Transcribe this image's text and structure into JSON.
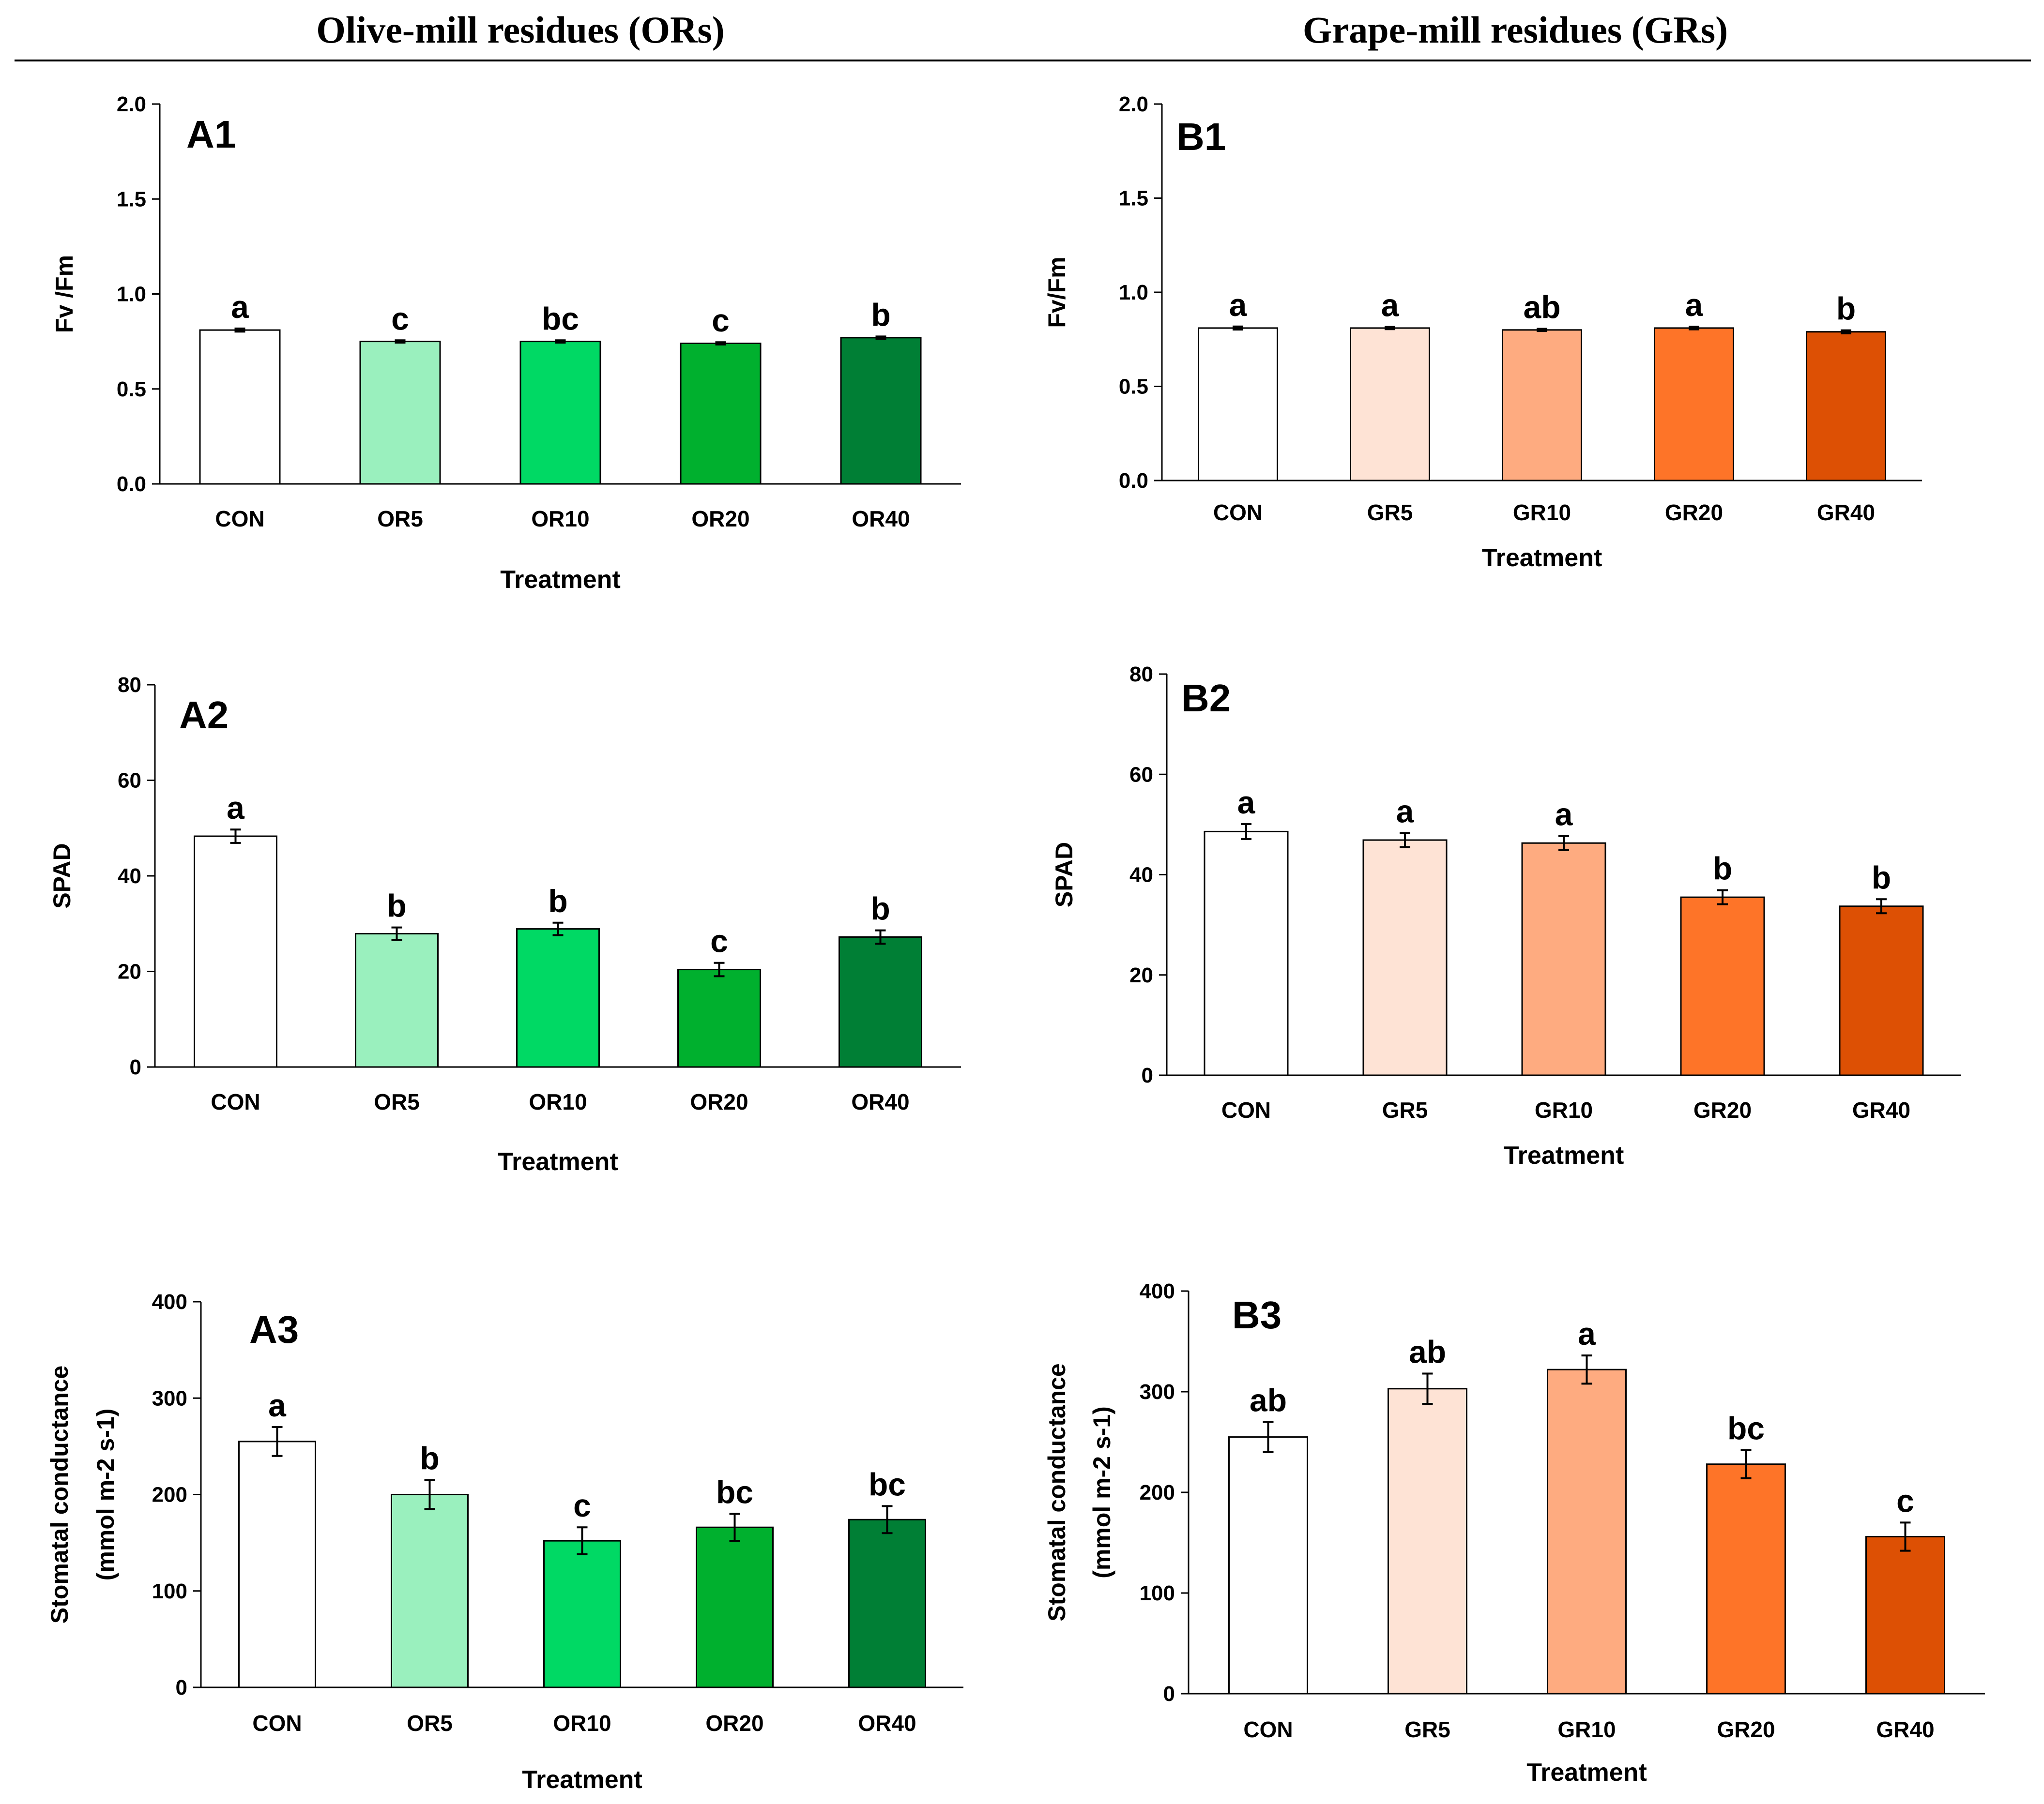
{
  "headers": {
    "left": "Olive-mill residues (ORs)",
    "right": "Grape-mill residues (GRs)"
  },
  "chart_data": [
    {
      "id": "A1",
      "type": "bar",
      "panel_label": "A1",
      "categories": [
        "CON",
        "OR5",
        "OR10",
        "OR20",
        "OR40"
      ],
      "values": [
        0.81,
        0.75,
        0.75,
        0.74,
        0.77
      ],
      "errors": [
        0.008,
        0.006,
        0.006,
        0.006,
        0.006
      ],
      "letters": [
        "a",
        "c",
        "bc",
        "c",
        "b"
      ],
      "colors": [
        "#ffffff",
        "#9af0be",
        "#00d964",
        "#00b02e",
        "#007f35"
      ],
      "ylim": [
        0,
        2.0
      ],
      "yticks": [
        0,
        0.5,
        1.0,
        1.5,
        2.0
      ],
      "yticklabels": [
        "0.0",
        "0.5",
        "1.0",
        "1.5",
        "2.0"
      ],
      "ylabel": "Fv /Fm",
      "ylabel2": "",
      "xlabel": "Treatment"
    },
    {
      "id": "B1",
      "type": "bar",
      "panel_label": "B1",
      "categories": [
        "CON",
        "GR5",
        "GR10",
        "GR20",
        "GR40"
      ],
      "values": [
        0.81,
        0.81,
        0.8,
        0.81,
        0.79
      ],
      "errors": [
        0.008,
        0.006,
        0.006,
        0.007,
        0.008
      ],
      "letters": [
        "a",
        "a",
        "ab",
        "a",
        "b"
      ],
      "colors": [
        "#ffffff",
        "#fee3d5",
        "#feab80",
        "#fe7428",
        "#dd5004"
      ],
      "ylim": [
        0,
        2.0
      ],
      "yticks": [
        0,
        0.5,
        1.0,
        1.5,
        2.0
      ],
      "yticklabels": [
        "0.0",
        "0.5",
        "1.0",
        "1.5",
        "2.0"
      ],
      "ylabel": "Fv/Fm",
      "ylabel2": "",
      "xlabel": "Treatment"
    },
    {
      "id": "A2",
      "type": "bar",
      "panel_label": "A2",
      "categories": [
        "CON",
        "OR5",
        "OR10",
        "OR20",
        "OR40"
      ],
      "values": [
        48.3,
        27.9,
        28.9,
        20.4,
        27.2
      ],
      "errors": [
        1.4,
        1.3,
        1.3,
        1.4,
        1.4
      ],
      "letters": [
        "a",
        "b",
        "b",
        "c",
        "b"
      ],
      "colors": [
        "#ffffff",
        "#9af0be",
        "#00d964",
        "#00b02e",
        "#007f35"
      ],
      "ylim": [
        0,
        80
      ],
      "yticks": [
        0,
        20,
        40,
        60,
        80
      ],
      "yticklabels": [
        "0",
        "20",
        "40",
        "60",
        "80"
      ],
      "ylabel": "SPAD",
      "ylabel2": "",
      "xlabel": "Treatment"
    },
    {
      "id": "B2",
      "type": "bar",
      "panel_label": "B2",
      "categories": [
        "CON",
        "GR5",
        "GR10",
        "GR20",
        "GR40"
      ],
      "values": [
        48.6,
        46.9,
        46.3,
        35.5,
        33.7
      ],
      "errors": [
        1.5,
        1.4,
        1.4,
        1.4,
        1.4
      ],
      "letters": [
        "a",
        "a",
        "a",
        "b",
        "b"
      ],
      "colors": [
        "#ffffff",
        "#fee3d5",
        "#feab80",
        "#fe7428",
        "#dd5004"
      ],
      "ylim": [
        0,
        80
      ],
      "yticks": [
        0,
        20,
        40,
        60,
        80
      ],
      "yticklabels": [
        "0",
        "20",
        "40",
        "60",
        "80"
      ],
      "ylabel": "SPAD",
      "ylabel2": "",
      "xlabel": "Treatment"
    },
    {
      "id": "A3",
      "type": "bar",
      "panel_label": "A3",
      "categories": [
        "CON",
        "OR5",
        "OR10",
        "OR20",
        "OR40"
      ],
      "values": [
        255,
        200,
        152,
        166,
        174
      ],
      "errors": [
        15,
        15,
        14,
        14,
        14
      ],
      "letters": [
        "a",
        "b",
        "c",
        "bc",
        "bc"
      ],
      "colors": [
        "#ffffff",
        "#9af0be",
        "#00d964",
        "#00b02e",
        "#007f35"
      ],
      "ylim": [
        0,
        400
      ],
      "yticks": [
        0,
        100,
        200,
        300,
        400
      ],
      "yticklabels": [
        "0",
        "100",
        "200",
        "300",
        "400"
      ],
      "ylabel": "Stomatal conductance",
      "ylabel2": "(mmol m-2 s-1)",
      "xlabel": "Treatment"
    },
    {
      "id": "B3",
      "type": "bar",
      "panel_label": "B3",
      "categories": [
        "CON",
        "GR5",
        "GR10",
        "GR20",
        "GR40"
      ],
      "values": [
        255,
        303,
        322,
        228,
        156
      ],
      "errors": [
        15,
        15,
        14,
        14,
        14
      ],
      "letters": [
        "ab",
        "ab",
        "a",
        "bc",
        "c"
      ],
      "colors": [
        "#ffffff",
        "#fee3d5",
        "#feab80",
        "#fe7428",
        "#dd5004"
      ],
      "ylim": [
        0,
        400
      ],
      "yticks": [
        0,
        100,
        200,
        300,
        400
      ],
      "yticklabels": [
        "0",
        "100",
        "200",
        "300",
        "400"
      ],
      "ylabel": "Stomatal conductance",
      "ylabel2": "(mmol m-2 s-1)",
      "xlabel": "Treatment"
    }
  ]
}
